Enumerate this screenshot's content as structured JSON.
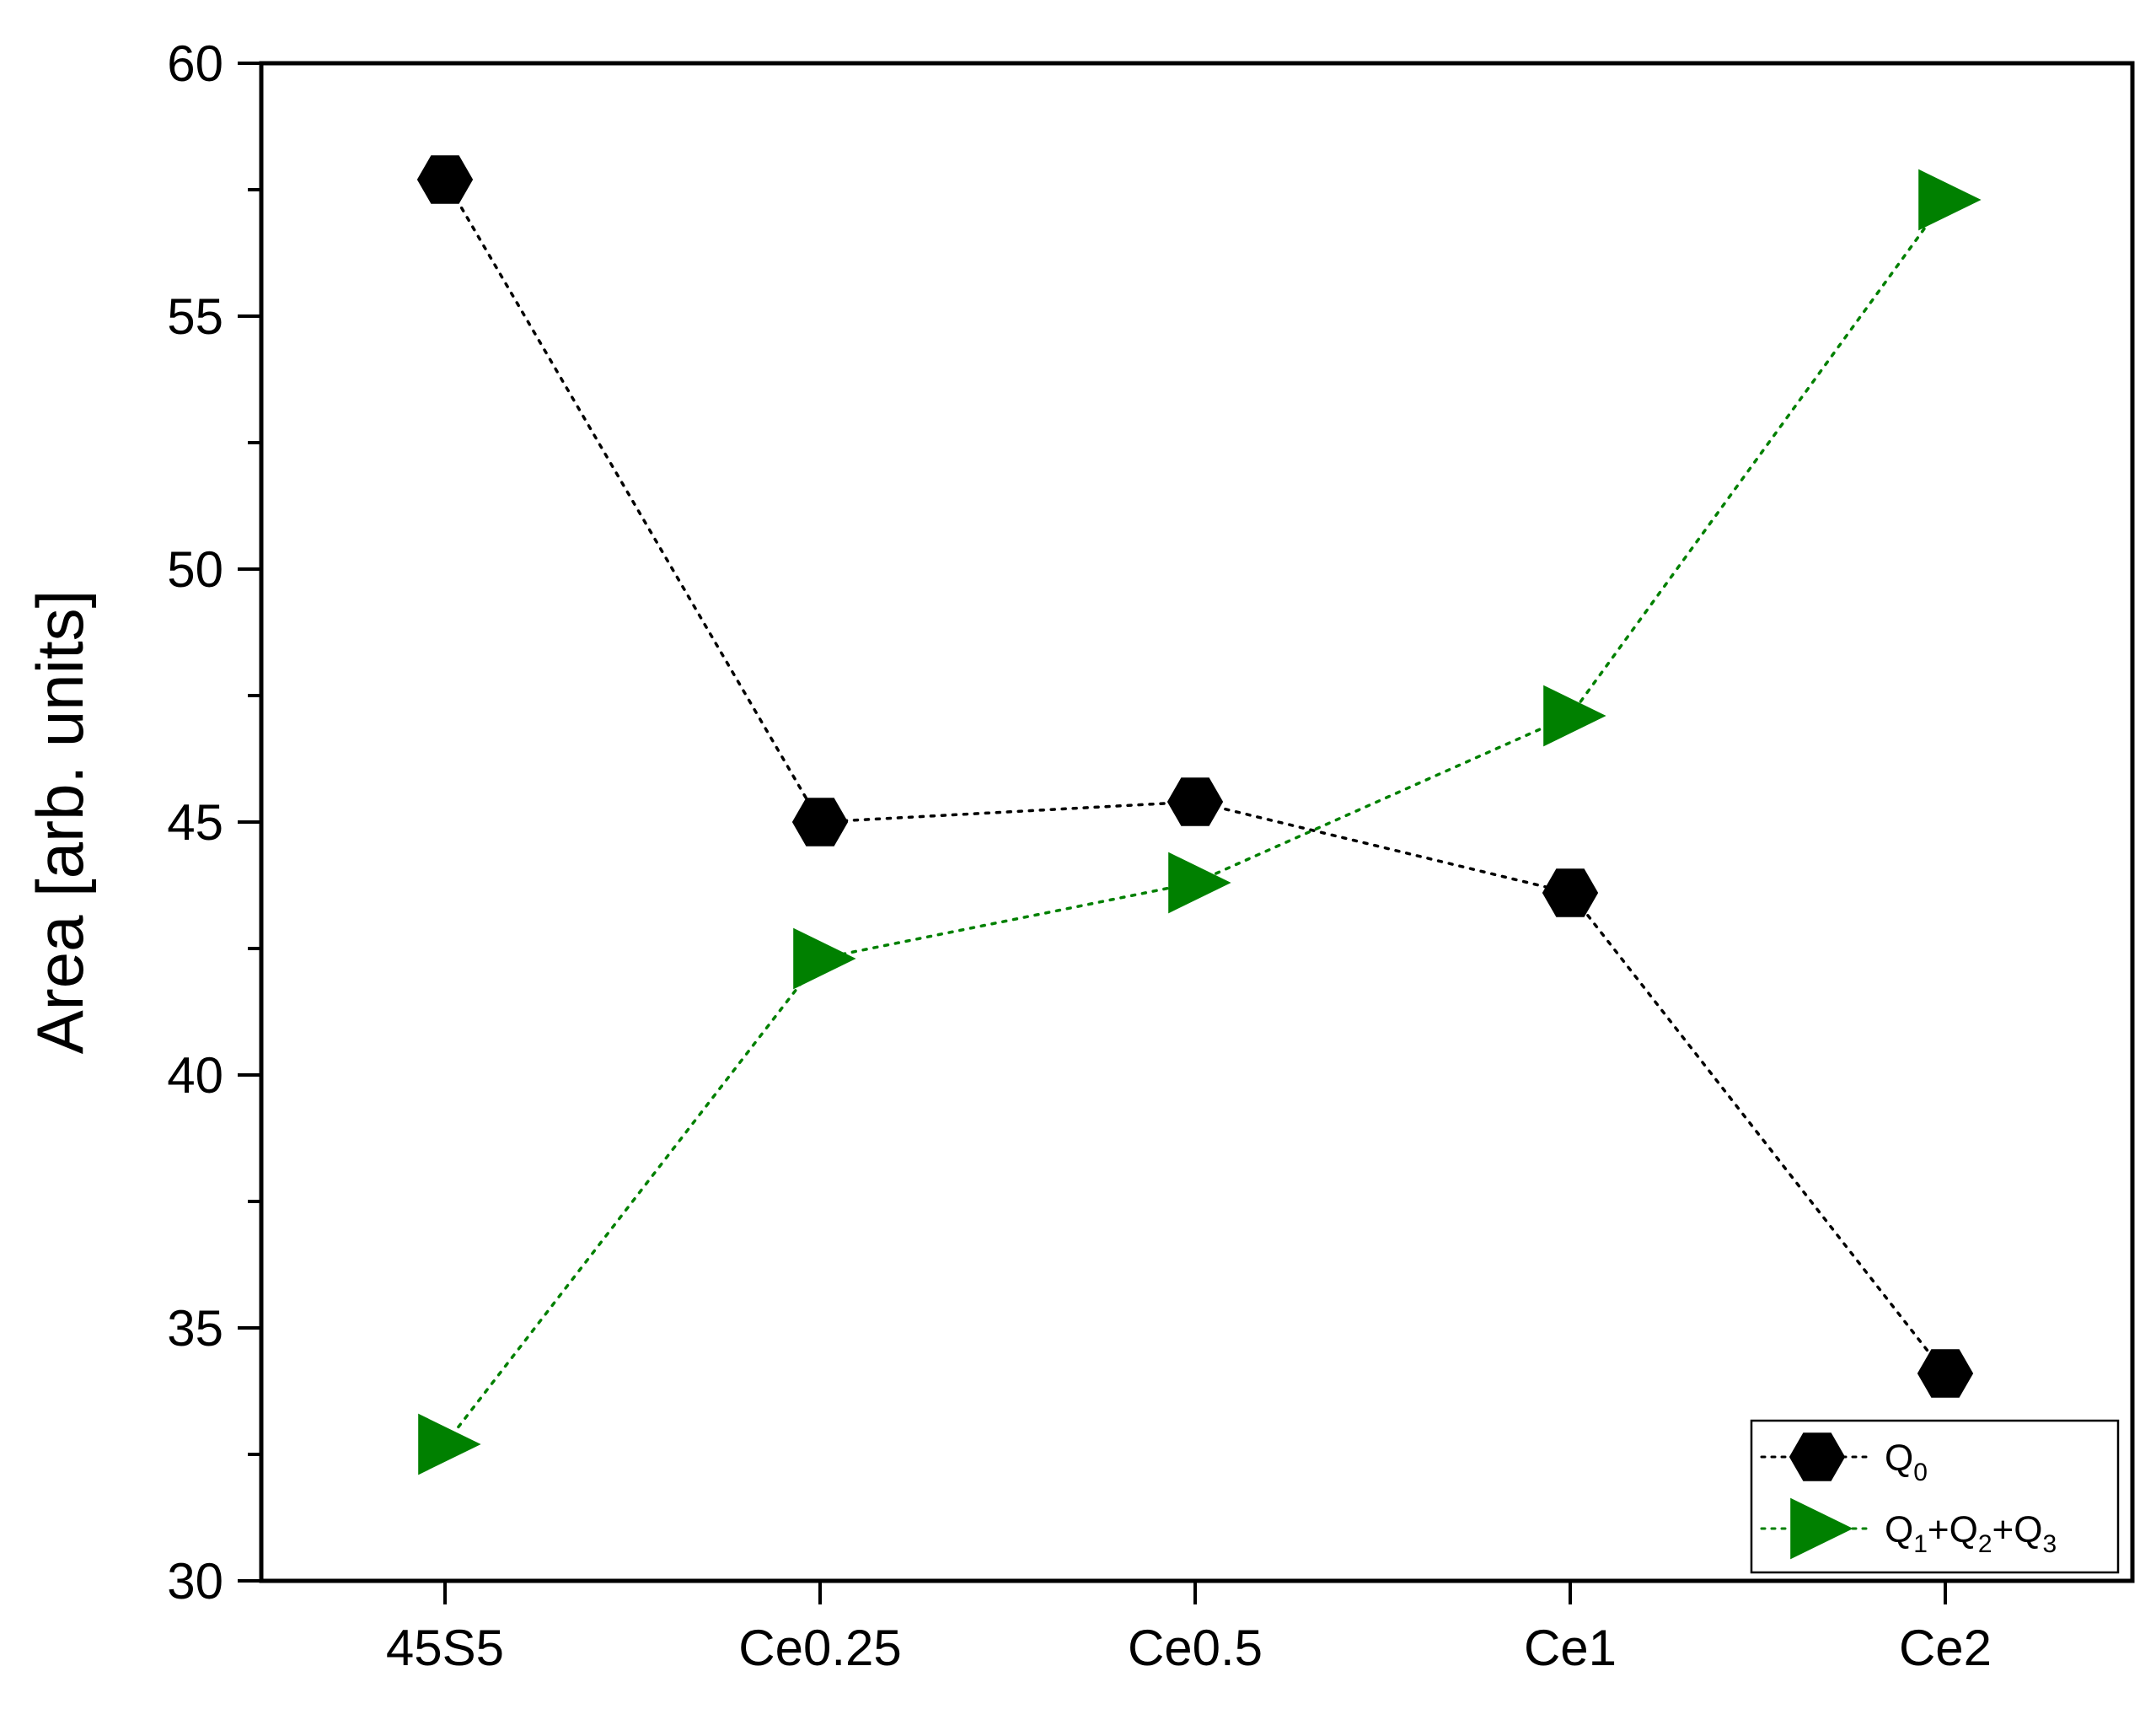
{
  "chart_data": {
    "type": "line",
    "categories": [
      "45S5",
      "Ce0.25",
      "Ce0.5",
      "Ce1",
      "Ce2"
    ],
    "ylabel": "Area [arb. units]",
    "xlabel": "",
    "ylim": [
      30,
      60
    ],
    "yticks": [
      30,
      35,
      40,
      45,
      50,
      55,
      60
    ],
    "grid": false,
    "legend_position": "bottom-right",
    "series": [
      {
        "name": "Q0",
        "label_parts": [
          "Q",
          "0"
        ],
        "marker": "hexagon",
        "line": "dotted",
        "color": "#000000",
        "values": [
          57.7,
          45.0,
          45.4,
          43.6,
          34.1
        ]
      },
      {
        "name": "Q1+Q2+Q3",
        "label_parts": [
          "Q",
          "1",
          "+Q",
          "2",
          "+Q",
          "3"
        ],
        "marker": "triangle-right",
        "line": "dotted",
        "color": "#008000",
        "values": [
          32.7,
          42.3,
          43.8,
          47.1,
          57.3
        ]
      }
    ]
  }
}
